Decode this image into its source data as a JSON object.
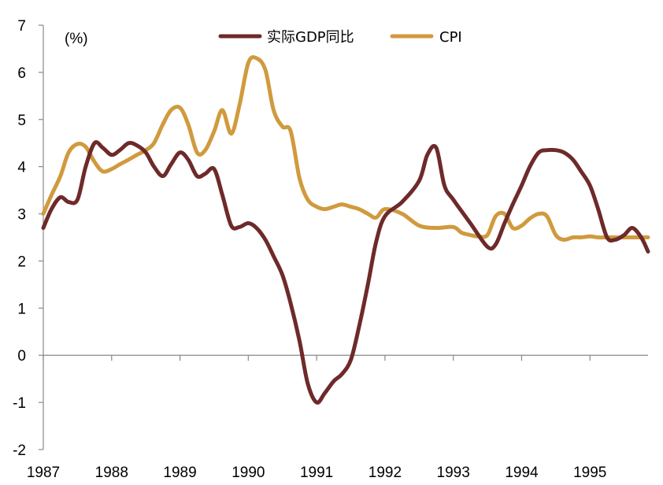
{
  "chart_data": {
    "type": "line",
    "unit_label": "(%)",
    "ylim": [
      -2,
      7
    ],
    "yticks": [
      -2,
      -1,
      0,
      1,
      2,
      3,
      4,
      5,
      6,
      7
    ],
    "xlim": [
      1987,
      1995.85
    ],
    "xticks": [
      1987,
      1988,
      1989,
      1990,
      1991,
      1992,
      1993,
      1994,
      1995
    ],
    "grid": false,
    "legend_position": "top-center",
    "series": [
      {
        "name": "实际GDP同比",
        "color": "#6E2A2A",
        "x": [
          1987.0,
          1987.12,
          1987.25,
          1987.37,
          1987.5,
          1987.62,
          1987.75,
          1987.87,
          1988.0,
          1988.12,
          1988.25,
          1988.37,
          1988.5,
          1988.62,
          1988.75,
          1988.87,
          1989.0,
          1989.12,
          1989.25,
          1989.37,
          1989.5,
          1989.62,
          1989.75,
          1989.87,
          1990.0,
          1990.12,
          1990.25,
          1990.37,
          1990.5,
          1990.62,
          1990.75,
          1990.87,
          1991.0,
          1991.12,
          1991.25,
          1991.37,
          1991.5,
          1991.62,
          1991.75,
          1991.87,
          1992.0,
          1992.25,
          1992.5,
          1992.62,
          1992.75,
          1992.87,
          1993.0,
          1993.25,
          1993.5,
          1993.62,
          1993.75,
          1993.87,
          1994.0,
          1994.12,
          1994.25,
          1994.37,
          1994.5,
          1994.62,
          1994.75,
          1994.87,
          1995.0,
          1995.12,
          1995.25,
          1995.37,
          1995.5,
          1995.62,
          1995.75,
          1995.85
        ],
        "values": [
          2.7,
          3.1,
          3.35,
          3.25,
          3.3,
          4.0,
          4.5,
          4.4,
          4.25,
          4.35,
          4.5,
          4.45,
          4.3,
          4.0,
          3.8,
          4.05,
          4.3,
          4.15,
          3.8,
          3.85,
          3.95,
          3.4,
          2.75,
          2.72,
          2.8,
          2.7,
          2.45,
          2.1,
          1.7,
          1.1,
          0.3,
          -0.6,
          -1.0,
          -0.8,
          -0.55,
          -0.4,
          -0.1,
          0.6,
          1.5,
          2.4,
          2.95,
          3.25,
          3.7,
          4.25,
          4.4,
          3.6,
          3.3,
          2.8,
          2.3,
          2.35,
          2.8,
          3.2,
          3.6,
          4.0,
          4.3,
          4.35,
          4.35,
          4.3,
          4.15,
          3.9,
          3.6,
          3.1,
          2.5,
          2.45,
          2.55,
          2.7,
          2.5,
          2.2
        ]
      },
      {
        "name": "CPI",
        "color": "#D09A3E",
        "x": [
          1987.0,
          1987.12,
          1987.25,
          1987.37,
          1987.5,
          1987.62,
          1987.75,
          1987.87,
          1988.0,
          1988.12,
          1988.25,
          1988.37,
          1988.5,
          1988.62,
          1988.75,
          1988.87,
          1989.0,
          1989.12,
          1989.25,
          1989.37,
          1989.5,
          1989.62,
          1989.75,
          1989.87,
          1990.0,
          1990.12,
          1990.25,
          1990.37,
          1990.5,
          1990.62,
          1990.75,
          1990.87,
          1991.0,
          1991.12,
          1991.25,
          1991.37,
          1991.5,
          1991.62,
          1991.75,
          1991.87,
          1992.0,
          1992.25,
          1992.5,
          1992.75,
          1993.0,
          1993.12,
          1993.25,
          1993.37,
          1993.5,
          1993.62,
          1993.75,
          1993.87,
          1994.0,
          1994.12,
          1994.25,
          1994.37,
          1994.5,
          1994.62,
          1994.75,
          1994.87,
          1995.0,
          1995.12,
          1995.25,
          1995.37,
          1995.5,
          1995.62,
          1995.75,
          1995.85
        ],
        "values": [
          3.0,
          3.4,
          3.8,
          4.3,
          4.48,
          4.42,
          4.1,
          3.9,
          3.95,
          4.05,
          4.15,
          4.25,
          4.35,
          4.5,
          4.9,
          5.2,
          5.25,
          4.9,
          4.3,
          4.35,
          4.75,
          5.2,
          4.7,
          5.3,
          6.2,
          6.3,
          6.05,
          5.2,
          4.85,
          4.75,
          3.75,
          3.3,
          3.15,
          3.1,
          3.15,
          3.2,
          3.15,
          3.1,
          3.0,
          2.92,
          3.1,
          3.0,
          2.75,
          2.7,
          2.72,
          2.6,
          2.55,
          2.52,
          2.55,
          2.95,
          3.0,
          2.7,
          2.75,
          2.9,
          3.0,
          2.95,
          2.55,
          2.45,
          2.5,
          2.5,
          2.52,
          2.5,
          2.5,
          2.5,
          2.5,
          2.5,
          2.5,
          2.5
        ]
      }
    ]
  }
}
